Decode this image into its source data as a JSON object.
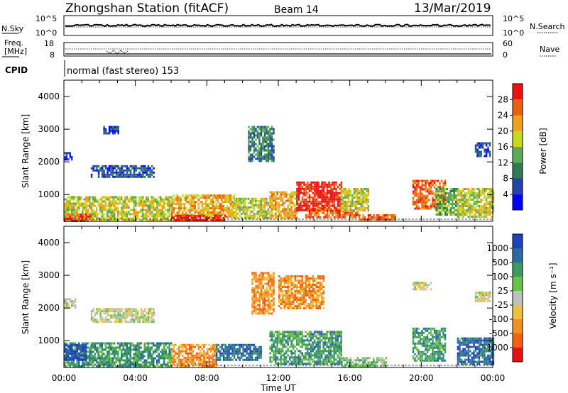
{
  "header": {
    "title": "Zhongshan Station (fitACF)",
    "beam": "Beam 14",
    "date": "13/Mar/2019"
  },
  "strip_panels": {
    "nsky_label": "N.Sky",
    "nsky_ticks": [
      "10^5",
      "10^0"
    ],
    "nsearch_label": "N.Search",
    "nsearch_ticks": [
      "10^5",
      "10^0"
    ],
    "freq_label_line1": "Freq.",
    "freq_label_line2": "[MHz]",
    "freq_ticks": [
      "18",
      "8"
    ],
    "nave_label": "Nave",
    "nave_ticks": [
      "60",
      "0"
    ],
    "cpid_label": "CPID",
    "cpid_text": "normal (fast stereo) 153"
  },
  "chart_data": [
    {
      "type": "heatmap",
      "name": "power",
      "xlabel": "Time UT",
      "ylabel": "Slant Range [km]",
      "ylim": [
        180,
        4500
      ],
      "yticks": [
        1000,
        2000,
        3000,
        4000
      ],
      "colorbar_label": "Power [dB]",
      "colorbar_ticks": [
        "28",
        "24",
        "20",
        "16",
        "12",
        "8",
        "4"
      ],
      "colors": [
        "#0000ff",
        "#2244aa",
        "#2f7a55",
        "#5aaa5a",
        "#c8d820",
        "#f0a020",
        "#e86010",
        "#ee1010"
      ],
      "regions": [
        {
          "t0": 0.0,
          "t1": 6.0,
          "r0": 200,
          "r1": 950,
          "level": 4
        },
        {
          "t0": 0.0,
          "t1": 1.5,
          "r0": 200,
          "r1": 420,
          "level": 6
        },
        {
          "t0": 1.5,
          "t1": 5.0,
          "r0": 1550,
          "r1": 1900,
          "level": 1
        },
        {
          "t0": 2.2,
          "t1": 3.0,
          "r0": 2900,
          "r1": 3100,
          "level": 1
        },
        {
          "t0": 6.0,
          "t1": 9.5,
          "r0": 300,
          "r1": 1000,
          "level": 5
        },
        {
          "t0": 6.0,
          "t1": 9.0,
          "r0": 200,
          "r1": 380,
          "level": 7
        },
        {
          "t0": 9.5,
          "t1": 11.5,
          "r0": 300,
          "r1": 900,
          "level": 4
        },
        {
          "t0": 10.3,
          "t1": 11.7,
          "r0": 2000,
          "r1": 3100,
          "level": 2
        },
        {
          "t0": 11.5,
          "t1": 13.0,
          "r0": 300,
          "r1": 1100,
          "level": 5
        },
        {
          "t0": 13.0,
          "t1": 15.5,
          "r0": 500,
          "r1": 1400,
          "level": 7
        },
        {
          "t0": 13.5,
          "t1": 16.5,
          "r0": 300,
          "r1": 600,
          "level": 6
        },
        {
          "t0": 15.5,
          "t1": 17.0,
          "r0": 500,
          "r1": 1200,
          "level": 4
        },
        {
          "t0": 16.5,
          "t1": 18.5,
          "r0": 220,
          "r1": 400,
          "level": 6
        },
        {
          "t0": 19.5,
          "t1": 21.3,
          "r0": 600,
          "r1": 1450,
          "level": 6
        },
        {
          "t0": 20.8,
          "t1": 22.0,
          "r0": 400,
          "r1": 1200,
          "level": 3
        },
        {
          "t0": 22.0,
          "t1": 24.0,
          "r0": 300,
          "r1": 1200,
          "level": 4
        },
        {
          "t0": 23.0,
          "t1": 23.8,
          "r0": 2200,
          "r1": 2600,
          "level": 1
        },
        {
          "t0": 0.0,
          "t1": 0.4,
          "r0": 2100,
          "r1": 2300,
          "level": 1
        }
      ]
    },
    {
      "type": "heatmap",
      "name": "velocity",
      "xlabel": "Time UT",
      "ylabel": "Slant Range [km]",
      "ylim": [
        180,
        4500
      ],
      "yticks": [
        1000,
        2000,
        3000,
        4000
      ],
      "xticks": [
        "00:00",
        "04:00",
        "08:00",
        "12:00",
        "16:00",
        "20:00",
        "00:00"
      ],
      "colorbar_label": "Velocity [m s⁻¹]",
      "colorbar_ticks": [
        "1000",
        "500",
        "100",
        "25",
        "-25",
        "-100",
        "-500",
        "-1000"
      ],
      "colors": [
        "#e81010",
        "#f06010",
        "#f09020",
        "#f0c040",
        "#c0c0c0",
        "#6ac048",
        "#3a9a60",
        "#2a6aa0",
        "#2040c0"
      ],
      "regions": [
        {
          "t0": 0.0,
          "t1": 6.0,
          "r0": 200,
          "r1": 950,
          "level": 6
        },
        {
          "t0": 0.0,
          "t1": 1.2,
          "r0": 400,
          "r1": 900,
          "level": 8
        },
        {
          "t0": 1.5,
          "t1": 5.0,
          "r0": 1550,
          "r1": 2000,
          "level": 4
        },
        {
          "t0": 0.0,
          "t1": 0.6,
          "r0": 2000,
          "r1": 2300,
          "level": 4
        },
        {
          "t0": 6.0,
          "t1": 8.5,
          "r0": 200,
          "r1": 900,
          "level": 2
        },
        {
          "t0": 8.5,
          "t1": 11.0,
          "r0": 400,
          "r1": 900,
          "level": 7
        },
        {
          "t0": 10.5,
          "t1": 11.7,
          "r0": 1800,
          "r1": 3100,
          "level": 2
        },
        {
          "t0": 12.0,
          "t1": 14.5,
          "r0": 2000,
          "r1": 3000,
          "level": 2
        },
        {
          "t0": 11.5,
          "t1": 15.5,
          "r0": 300,
          "r1": 1300,
          "level": 6
        },
        {
          "t0": 15.5,
          "t1": 18.0,
          "r0": 220,
          "r1": 500,
          "level": 5
        },
        {
          "t0": 19.5,
          "t1": 21.3,
          "r0": 400,
          "r1": 1400,
          "level": 6
        },
        {
          "t0": 22.0,
          "t1": 24.0,
          "r0": 300,
          "r1": 1100,
          "level": 7
        },
        {
          "t0": 23.0,
          "t1": 23.8,
          "r0": 2200,
          "r1": 2500,
          "level": 4
        },
        {
          "t0": 19.5,
          "t1": 20.5,
          "r0": 2600,
          "r1": 2800,
          "level": 4
        }
      ]
    }
  ]
}
